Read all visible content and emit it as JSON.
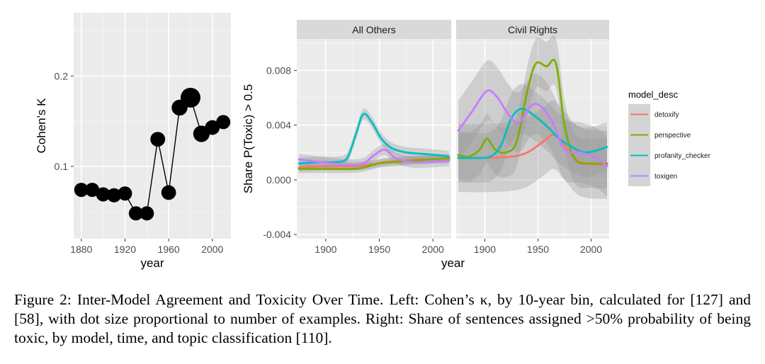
{
  "chart_data": [
    {
      "type": "scatter",
      "xlabel": "year",
      "ylabel": "Cohen's K",
      "xlim": [
        1873,
        2017
      ],
      "ylim": [
        0.02,
        0.27
      ],
      "xticks": [
        "1880",
        "1920",
        "1960",
        "2000"
      ],
      "yticks": [
        "0.1",
        "0.2"
      ],
      "grid": true,
      "connected": true,
      "x": [
        1880,
        1890,
        1900,
        1910,
        1920,
        1930,
        1940,
        1950,
        1960,
        1970,
        1980,
        1990,
        2000,
        2010
      ],
      "y": [
        0.074,
        0.074,
        0.069,
        0.068,
        0.07,
        0.048,
        0.048,
        0.13,
        0.071,
        0.165,
        0.176,
        0.136,
        0.143,
        0.149
      ],
      "size": [
        0.5,
        0.5,
        0.5,
        0.5,
        0.5,
        0.5,
        0.5,
        0.55,
        0.55,
        0.65,
        1.0,
        0.7,
        0.55,
        0.5
      ]
    },
    {
      "type": "line",
      "xlabel": "year",
      "ylabel": "Share P(Toxic) > 0.5",
      "xlim": [
        1873,
        2017
      ],
      "ylim": [
        -0.0043,
        0.0103
      ],
      "xticks": [
        "1900",
        "1950",
        "2000"
      ],
      "yticks": [
        "-0.004",
        "0.000",
        "0.004",
        "0.008"
      ],
      "grid": true,
      "legend_title": "model_desc",
      "legend_position": "right",
      "series_meta": [
        {
          "name": "detoxify",
          "color": "#F8766D"
        },
        {
          "name": "perspective",
          "color": "#7CAE00"
        },
        {
          "name": "profanity_checker",
          "color": "#00BFC4"
        },
        {
          "name": "toxigen",
          "color": "#C77CFF"
        }
      ],
      "panels": [
        {
          "title": "All Others",
          "band_ci": [
            0.0003,
            0.0003,
            0.0004,
            0.0004
          ],
          "series": [
            {
              "name": "detoxify",
              "x": [
                1875,
                1900,
                1925,
                1940,
                1955,
                1970,
                1990,
                2015
              ],
              "y": [
                0.0009,
                0.001,
                0.001,
                0.0011,
                0.0013,
                0.0014,
                0.0015,
                0.0015
              ]
            },
            {
              "name": "perspective",
              "x": [
                1875,
                1900,
                1925,
                1935,
                1950,
                1965,
                1980,
                2000,
                2015
              ],
              "y": [
                0.0008,
                0.0008,
                0.0008,
                0.0009,
                0.0012,
                0.0013,
                0.0014,
                0.0015,
                0.0016
              ]
            },
            {
              "name": "profanity_checker",
              "x": [
                1875,
                1895,
                1910,
                1920,
                1928,
                1935,
                1943,
                1952,
                1962,
                1975,
                1990,
                2005,
                2015
              ],
              "y": [
                0.0012,
                0.0013,
                0.0013,
                0.0016,
                0.0033,
                0.0048,
                0.0042,
                0.003,
                0.0023,
                0.002,
                0.0019,
                0.0018,
                0.0017
              ]
            },
            {
              "name": "toxigen",
              "x": [
                1875,
                1895,
                1920,
                1935,
                1945,
                1955,
                1965,
                1980,
                1995,
                2015
              ],
              "y": [
                0.0015,
                0.0013,
                0.0011,
                0.0012,
                0.0018,
                0.0022,
                0.0016,
                0.0013,
                0.0013,
                0.0014
              ]
            }
          ]
        },
        {
          "title": "Civil Rights",
          "band_ci": [
            0.0025,
            0.0018,
            0.0018,
            0.0022
          ],
          "series": [
            {
              "name": "detoxify",
              "x": [
                1875,
                1900,
                1925,
                1940,
                1955,
                1965,
                1975,
                1990,
                2015
              ],
              "y": [
                0.0016,
                0.0016,
                0.0017,
                0.002,
                0.0028,
                0.0033,
                0.0025,
                0.0013,
                0.0011
              ]
            },
            {
              "name": "perspective",
              "x": [
                1875,
                1885,
                1895,
                1902,
                1910,
                1920,
                1930,
                1940,
                1948,
                1958,
                1967,
                1975,
                1985,
                2000,
                2015
              ],
              "y": [
                0.0018,
                0.0017,
                0.0022,
                0.003,
                0.0022,
                0.002,
                0.0028,
                0.0065,
                0.0085,
                0.0083,
                0.0085,
                0.004,
                0.0015,
                0.0012,
                0.0012
              ]
            },
            {
              "name": "profanity_checker",
              "x": [
                1875,
                1890,
                1905,
                1915,
                1925,
                1935,
                1948,
                1960,
                1970,
                1980,
                1995,
                2015
              ],
              "y": [
                0.0016,
                0.0016,
                0.0017,
                0.0025,
                0.0045,
                0.0052,
                0.0046,
                0.0038,
                0.003,
                0.0025,
                0.002,
                0.0024
              ]
            },
            {
              "name": "toxigen",
              "x": [
                1875,
                1888,
                1902,
                1912,
                1922,
                1932,
                1945,
                1955,
                1965,
                1975,
                1990,
                2005,
                2015
              ],
              "y": [
                0.0036,
                0.005,
                0.0065,
                0.006,
                0.0048,
                0.0042,
                0.0055,
                0.0052,
                0.004,
                0.0022,
                0.002,
                0.0016,
                0.001
              ]
            }
          ]
        }
      ]
    }
  ],
  "caption": "Figure 2: Inter-Model Agreement and Toxicity Over Time. Left: Cohen’s κ, by 10-year bin, calculated for [127] and [58], with dot size proportional to number of examples. Right: Share of sentences assigned >50% probability of being toxic, by model, time, and topic classification [110]."
}
